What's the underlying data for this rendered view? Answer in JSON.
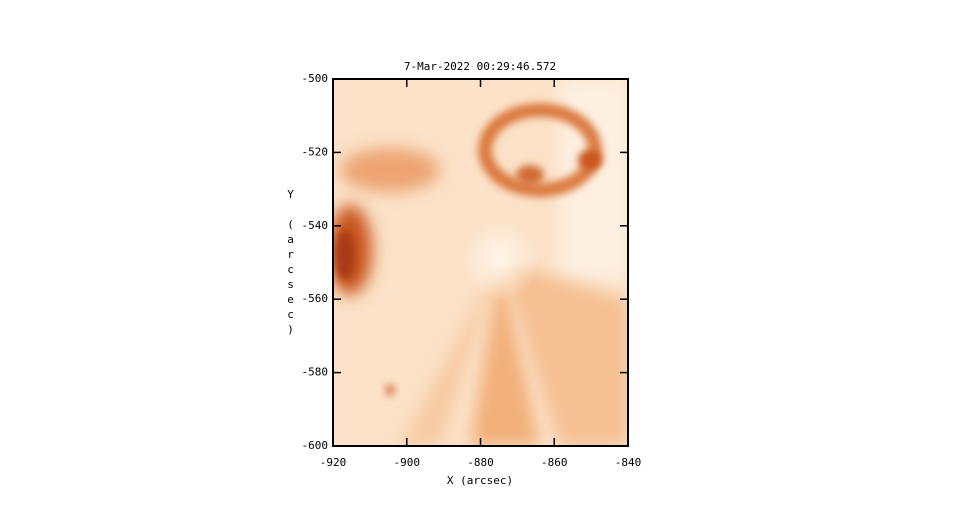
{
  "chart_data": {
    "type": "image",
    "title": "7-Mar-2022 00:29:46.572",
    "x_label": "X (arcsec)",
    "y_label": "Y (arcsec)",
    "xlim": [
      -920,
      -840
    ],
    "xticks": [
      -920,
      -900,
      -880,
      -860,
      -840
    ],
    "ylim": [
      -600,
      -500
    ],
    "yticks": [
      -600,
      -580,
      -560,
      -540,
      -520,
      -500
    ]
  }
}
